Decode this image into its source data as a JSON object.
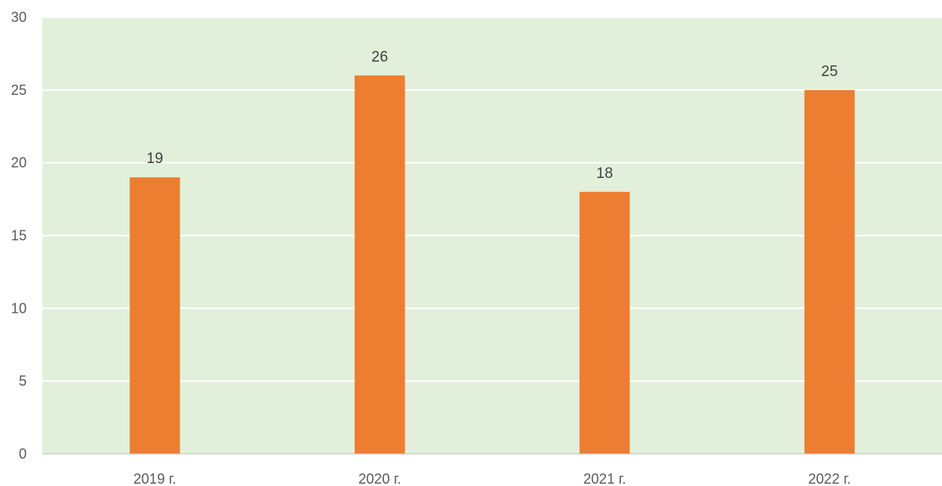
{
  "chart_data": {
    "type": "bar",
    "categories": [
      "2019 г.",
      "2020 г.",
      "2021 г.",
      "2022 г."
    ],
    "series": [
      {
        "values": [
          19,
          26,
          18,
          25
        ]
      }
    ],
    "data_labels": [
      "19",
      "26",
      "18",
      "25"
    ],
    "y_ticks": [
      "0",
      "5",
      "10",
      "15",
      "20",
      "25",
      "30"
    ],
    "ylim": [
      0,
      30
    ],
    "grid": true,
    "legend": "none",
    "colors": {
      "bar": "#ED7D31",
      "plot_background": "#E2EFDA",
      "gridline": "#FFFFFF",
      "axis_line": "#BFBFBF"
    }
  }
}
